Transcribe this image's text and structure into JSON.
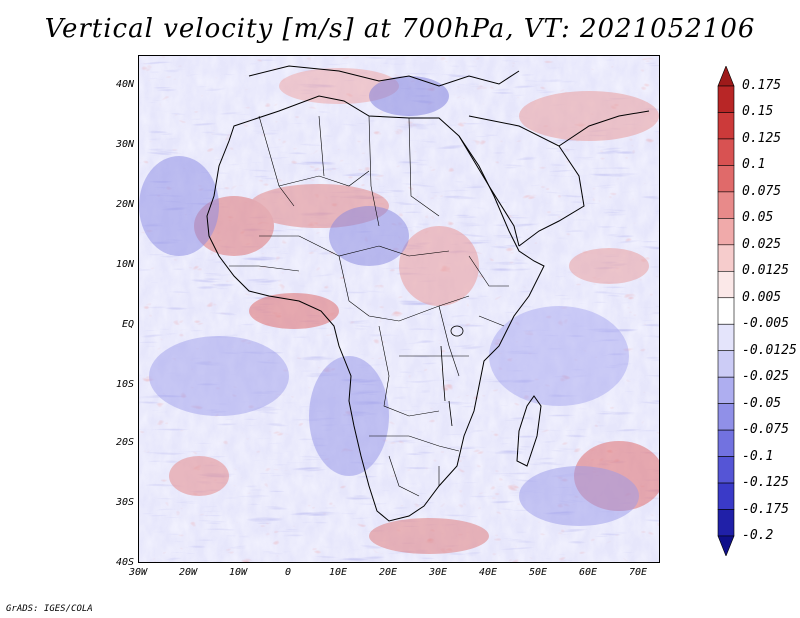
{
  "title": "Vertical velocity [m/s] at 700hPa, VT: 2021052106",
  "credit": "GrADS: IGES/COLA",
  "map": {
    "region": "Africa",
    "lat_labels": [
      "40N",
      "30N",
      "20N",
      "10N",
      "EQ",
      "10S",
      "20S",
      "30S",
      "40S"
    ],
    "lon_labels": [
      "30W",
      "20W",
      "10W",
      "0",
      "10E",
      "20E",
      "30E",
      "40E",
      "50E",
      "60E",
      "70E"
    ]
  },
  "colorbar": {
    "labels": [
      "0.175",
      "0.15",
      "0.125",
      "0.1",
      "0.075",
      "0.05",
      "0.025",
      "0.0125",
      "0.005",
      "-0.005",
      "-0.0125",
      "-0.025",
      "-0.05",
      "-0.075",
      "-0.1",
      "-0.125",
      "-0.175",
      "-0.2"
    ],
    "colors": [
      "#9e1a1a",
      "#b82626",
      "#cc3a3a",
      "#d85252",
      "#e06a6a",
      "#e88a8a",
      "#f0aaaa",
      "#f6cccc",
      "#fbe8e8",
      "#ffffff",
      "#e4e4fb",
      "#ccccf6",
      "#aeaef0",
      "#9090e8",
      "#7272e0",
      "#5555d6",
      "#3a3ac8",
      "#2020a8",
      "#10108a"
    ]
  },
  "palette": {
    "red": "#d84a4a",
    "blue": "#6a6ad8",
    "land_lines": "#000000"
  }
}
